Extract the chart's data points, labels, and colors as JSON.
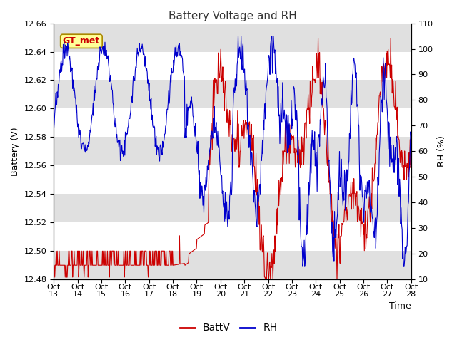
{
  "title": "Battery Voltage and RH",
  "xlabel": "Time",
  "ylabel_left": "Battery (V)",
  "ylabel_right": "RH (%)",
  "ylim_left": [
    12.48,
    12.66
  ],
  "ylim_right": [
    10,
    110
  ],
  "yticks_left": [
    12.48,
    12.5,
    12.52,
    12.54,
    12.56,
    12.58,
    12.6,
    12.62,
    12.64,
    12.66
  ],
  "yticks_right": [
    10,
    20,
    30,
    40,
    50,
    60,
    70,
    80,
    90,
    100,
    110
  ],
  "xtick_labels": [
    "Oct 13",
    "Oct 14",
    "Oct 15",
    "Oct 16",
    "Oct 17",
    "Oct 18",
    "Oct 19",
    "Oct 20",
    "Oct 21",
    "Oct 22",
    "Oct 23",
    "Oct 24",
    "Oct 25",
    "Oct 26",
    "Oct 27",
    "Oct 28"
  ],
  "annotation_text": "GT_met",
  "color_battv": "#cc0000",
  "color_rh": "#0000cc",
  "bg_color": "#ffffff",
  "stripe_color": "#e0e0e0",
  "title_fontsize": 11,
  "label_fontsize": 9,
  "tick_fontsize": 8,
  "legend_fontsize": 10,
  "n_days": 15,
  "figsize": [
    6.4,
    4.8
  ],
  "dpi": 100
}
